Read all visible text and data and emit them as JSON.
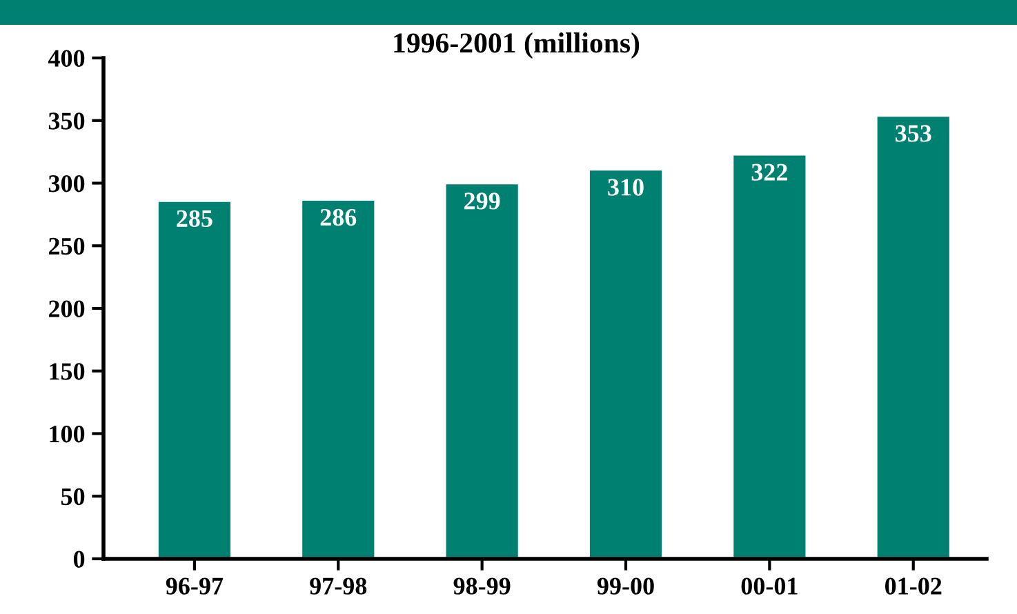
{
  "chart_data": {
    "type": "bar",
    "title": "1996-2001 (millions)",
    "categories": [
      "96-97",
      "97-98",
      "98-99",
      "99-00",
      "00-01",
      "01-02"
    ],
    "values": [
      285,
      286,
      299,
      310,
      322,
      353
    ],
    "color": "#008070",
    "ylim": [
      0,
      400
    ],
    "yticks": [
      0,
      50,
      100,
      150,
      200,
      250,
      300,
      350,
      400
    ],
    "data_labels": true,
    "grid": false,
    "legend": false
  }
}
